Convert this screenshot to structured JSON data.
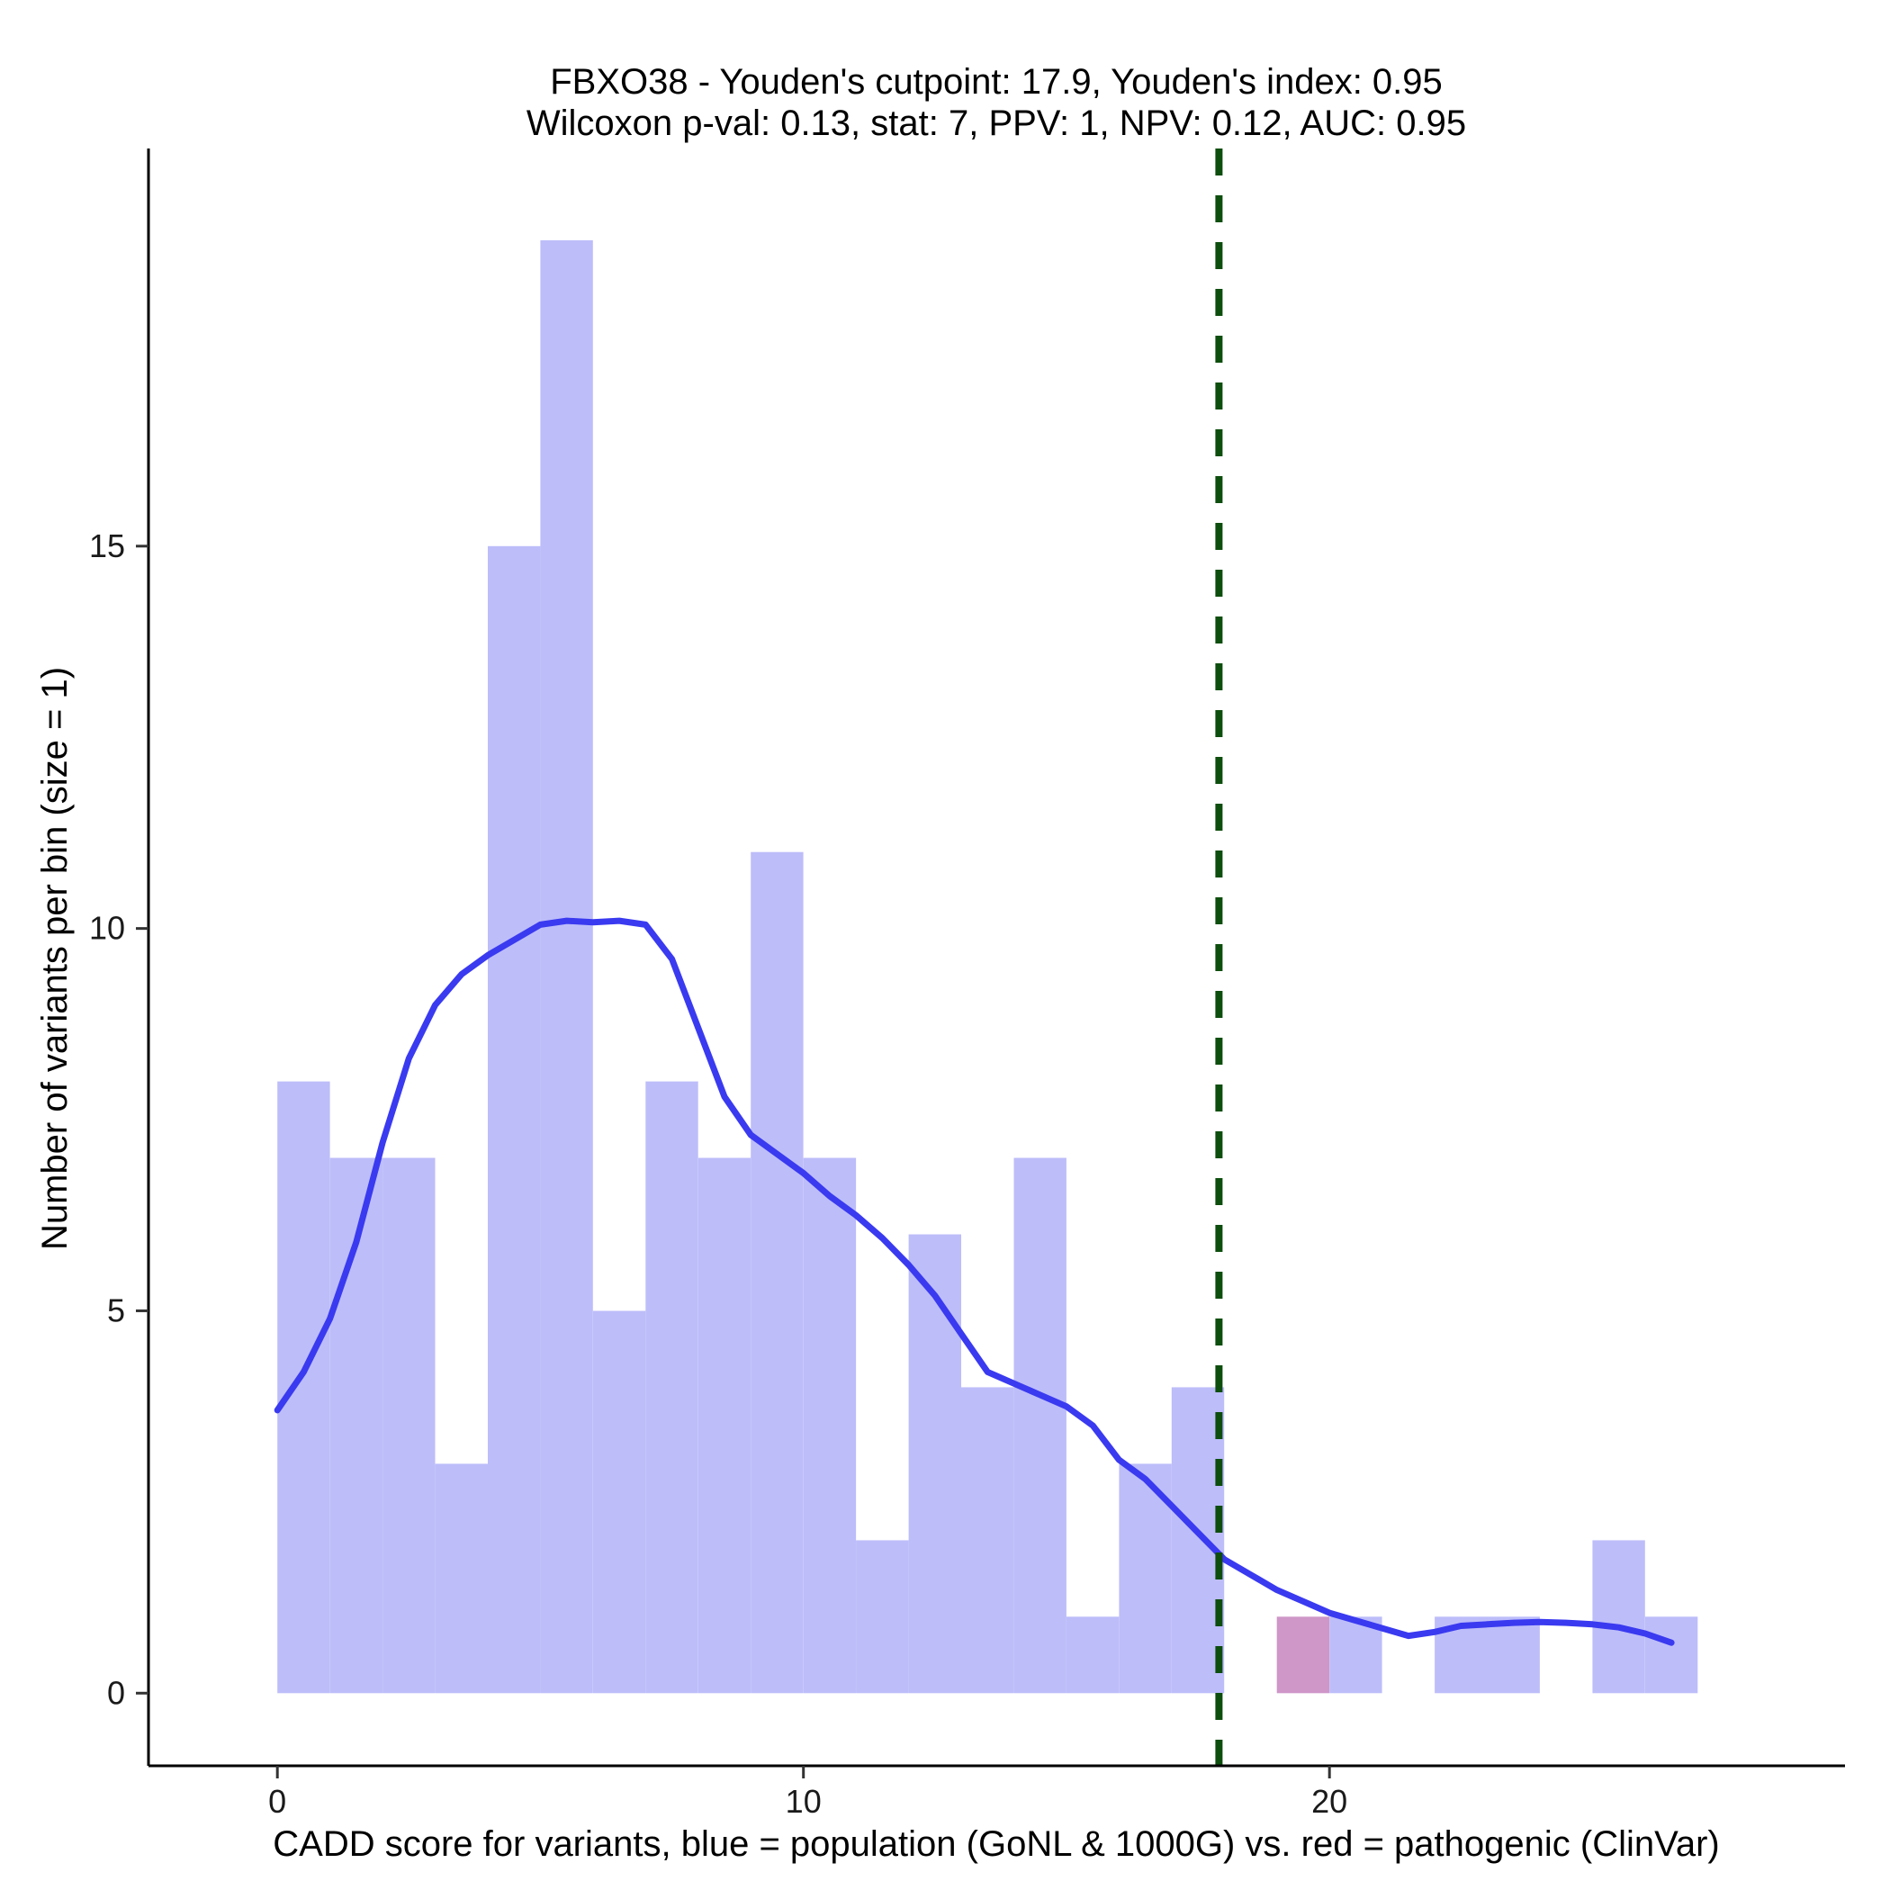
{
  "chart_data": {
    "type": "bar",
    "title": "FBXO38 - Youden's cutpoint: 17.9, Youden's index: 0.95",
    "subtitle": "Wilcoxon p-val: 0.13, stat: 7, PPV: 1, NPV: 0.12, AUC: 0.95",
    "xlabel": "CADD score for variants, blue = population (GoNL & 1000G) vs. red = pathogenic (ClinVar)",
    "ylabel": "Number of variants per bin (size = 1)",
    "xlim": [
      -2.45,
      29.8
    ],
    "ylim": [
      -0.95,
      20.2
    ],
    "x_ticks": [
      0,
      10,
      20
    ],
    "y_ticks": [
      0,
      5,
      10,
      15
    ],
    "bin_width": 1,
    "cutpoint": 17.9,
    "series": [
      {
        "color": "#bdbdfa",
        "bins": [
          {
            "start": 0,
            "count": 8
          },
          {
            "start": 1,
            "count": 7
          },
          {
            "start": 2,
            "count": 7
          },
          {
            "start": 3,
            "count": 3
          },
          {
            "start": 4,
            "count": 15
          },
          {
            "start": 5,
            "count": 19
          },
          {
            "start": 6,
            "count": 5
          },
          {
            "start": 7,
            "count": 8
          },
          {
            "start": 8,
            "count": 7
          },
          {
            "start": 9,
            "count": 11
          },
          {
            "start": 10,
            "count": 7
          },
          {
            "start": 11,
            "count": 2
          },
          {
            "start": 12,
            "count": 6
          },
          {
            "start": 13,
            "count": 4
          },
          {
            "start": 14,
            "count": 7
          },
          {
            "start": 15,
            "count": 1
          },
          {
            "start": 16,
            "count": 3
          },
          {
            "start": 17,
            "count": 4
          },
          {
            "start": 20,
            "count": 1
          },
          {
            "start": 22,
            "count": 1
          },
          {
            "start": 23,
            "count": 1
          },
          {
            "start": 25,
            "count": 2
          },
          {
            "start": 26,
            "count": 1
          }
        ]
      },
      {
        "color": "#cf96c8",
        "bins": [
          {
            "start": 19,
            "count": 1
          }
        ]
      }
    ],
    "density_line": {
      "color": "#3a3af0",
      "points": [
        [
          0,
          3.7
        ],
        [
          0.5,
          4.2
        ],
        [
          1,
          4.9
        ],
        [
          1.5,
          5.9
        ],
        [
          2,
          7.2
        ],
        [
          2.5,
          8.3
        ],
        [
          3,
          9.0
        ],
        [
          3.5,
          9.4
        ],
        [
          4,
          9.65
        ],
        [
          4.5,
          9.85
        ],
        [
          5,
          10.05
        ],
        [
          5.5,
          10.1
        ],
        [
          6,
          10.08
        ],
        [
          6.5,
          10.1
        ],
        [
          7,
          10.05
        ],
        [
          7.5,
          9.6
        ],
        [
          8,
          8.7
        ],
        [
          8.5,
          7.8
        ],
        [
          9,
          7.3
        ],
        [
          9.5,
          7.05
        ],
        [
          10,
          6.8
        ],
        [
          10.5,
          6.5
        ],
        [
          11,
          6.25
        ],
        [
          11.5,
          5.95
        ],
        [
          12,
          5.6
        ],
        [
          12.5,
          5.2
        ],
        [
          13,
          4.7
        ],
        [
          13.5,
          4.2
        ],
        [
          14,
          4.05
        ],
        [
          14.5,
          3.9
        ],
        [
          15,
          3.75
        ],
        [
          15.5,
          3.5
        ],
        [
          16,
          3.05
        ],
        [
          16.5,
          2.8
        ],
        [
          17,
          2.45
        ],
        [
          17.5,
          2.1
        ],
        [
          18,
          1.75
        ],
        [
          18.5,
          1.55
        ],
        [
          19,
          1.35
        ],
        [
          19.5,
          1.2
        ],
        [
          20,
          1.05
        ],
        [
          20.5,
          0.95
        ],
        [
          21,
          0.85
        ],
        [
          21.5,
          0.75
        ],
        [
          22,
          0.8
        ],
        [
          22.5,
          0.88
        ],
        [
          23,
          0.9
        ],
        [
          23.5,
          0.92
        ],
        [
          24,
          0.93
        ],
        [
          24.5,
          0.92
        ],
        [
          25,
          0.9
        ],
        [
          25.5,
          0.86
        ],
        [
          26,
          0.78
        ],
        [
          26.5,
          0.66
        ]
      ]
    },
    "cutpoint_line": {
      "color": "#0d4d0d",
      "style": "dashed"
    },
    "grid": false,
    "legend": "none"
  }
}
